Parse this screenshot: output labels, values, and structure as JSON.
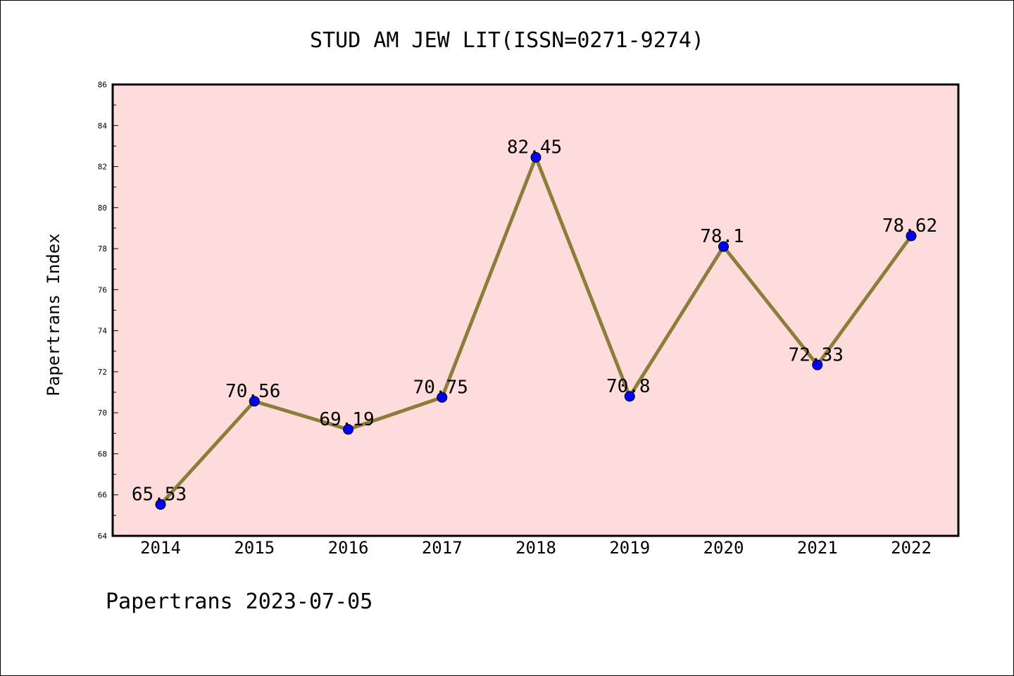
{
  "chart_data": {
    "type": "line",
    "title": "STUD AM JEW LIT(ISSN=0271-9274)",
    "xlabel": "",
    "ylabel": "Papertrans Index",
    "categories": [
      "2014",
      "2015",
      "2016",
      "2017",
      "2018",
      "2019",
      "2020",
      "2021",
      "2022"
    ],
    "series": [
      {
        "values": [
          65.53,
          70.56,
          69.19,
          70.75,
          82.45,
          70.8,
          78.1,
          72.33,
          78.62
        ],
        "labels": [
          "65.53",
          "70.56",
          "69.19",
          "70.75",
          "82.45",
          "70.8",
          "78.1",
          "72.33",
          "78.62"
        ],
        "line_color": "#8b7d3a",
        "marker_color": "#0000ff"
      }
    ],
    "ylim": [
      64,
      86
    ],
    "yticks": [
      "64",
      "66",
      "68",
      "70",
      "72",
      "74",
      "76",
      "78",
      "80",
      "82",
      "84",
      "86"
    ],
    "plot_background": "#ffdcdc",
    "grid": false,
    "legend": "none"
  },
  "footer": "Papertrans 2023-07-05"
}
